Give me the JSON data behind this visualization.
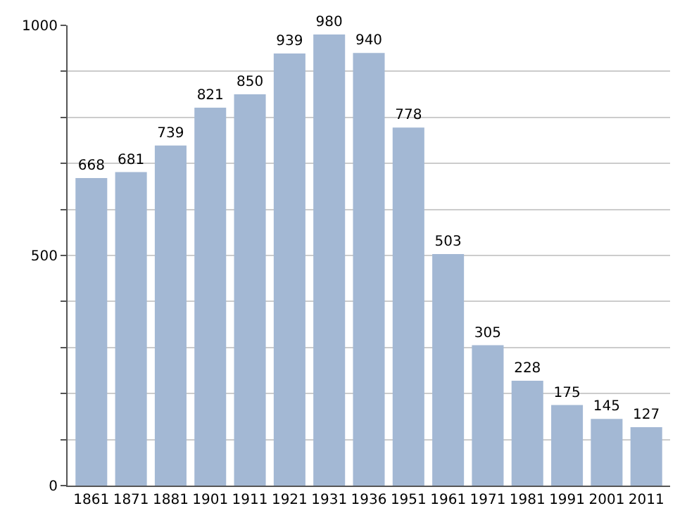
{
  "chart_data": {
    "type": "bar",
    "categories": [
      "1861",
      "1871",
      "1881",
      "1901",
      "1911",
      "1921",
      "1931",
      "1936",
      "1951",
      "1961",
      "1971",
      "1981",
      "1991",
      "2001",
      "2011"
    ],
    "values": [
      668,
      681,
      739,
      821,
      850,
      939,
      980,
      940,
      778,
      503,
      305,
      228,
      175,
      145,
      127
    ],
    "color": "#a3b8d4",
    "ylim": [
      0,
      1000
    ],
    "yticks": [
      0,
      {
        "value": 100,
        "label": null
      },
      {
        "value": 200,
        "label": null
      },
      {
        "value": 300,
        "label": null
      },
      {
        "value": 400,
        "label": null
      },
      500,
      {
        "value": 600,
        "label": null
      },
      {
        "value": 700,
        "label": null
      },
      {
        "value": 800,
        "label": null
      },
      {
        "value": 900,
        "label": null
      },
      1000
    ],
    "grid": "y",
    "data_labels": true
  }
}
